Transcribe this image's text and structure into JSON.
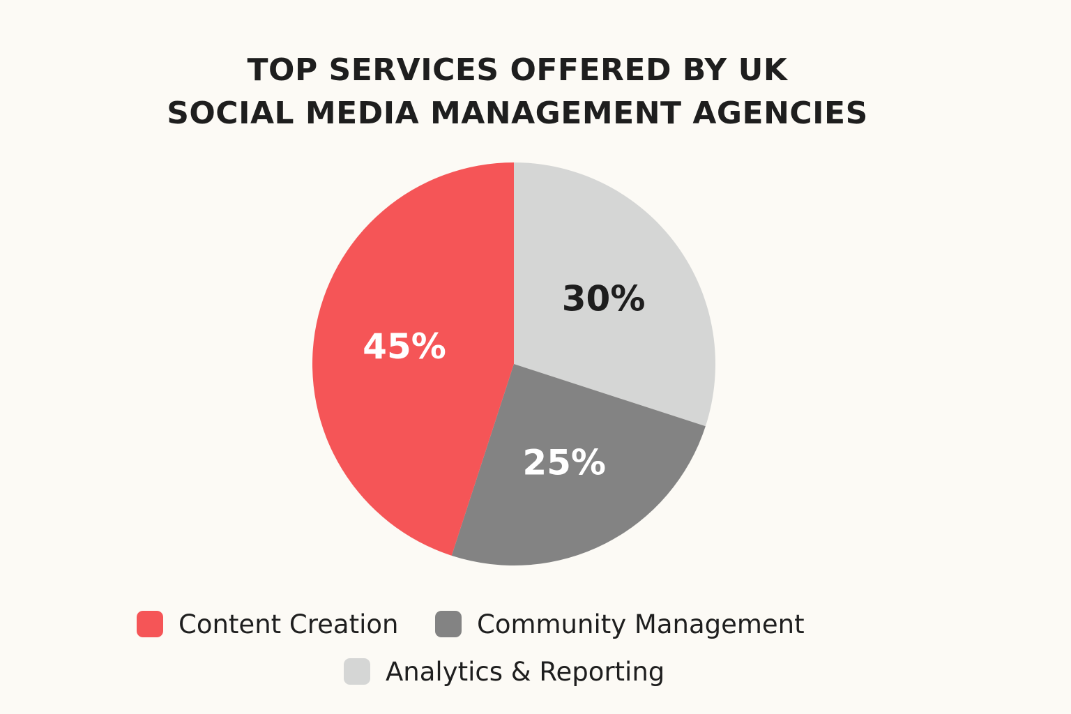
{
  "chart_data": {
    "type": "pie",
    "title_lines": [
      "TOP SERVICES OFFERED BY UK",
      "SOCIAL MEDIA MANAGEMENT AGENCIES"
    ],
    "slices": [
      {
        "name": "Content Creation",
        "value": 45,
        "label": "45%",
        "color": "#f55557",
        "label_color": "#ffffff"
      },
      {
        "name": "Community Management",
        "value": 25,
        "label": "25%",
        "color": "#838383",
        "label_color": "#ffffff"
      },
      {
        "name": "Analytics & Reporting",
        "value": 30,
        "label": "30%",
        "color": "#d5d6d5",
        "label_color": "#1e1e1e"
      }
    ],
    "legend_position": "bottom"
  }
}
